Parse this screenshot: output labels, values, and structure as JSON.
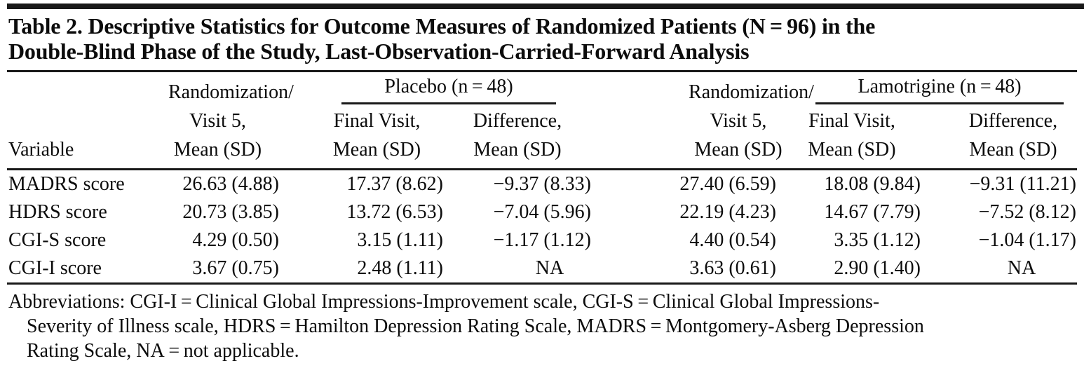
{
  "colors": {
    "background": "#ffffff",
    "text": "#0c0c0c",
    "rule": "#191919"
  },
  "table": {
    "title_lines": [
      "Table 2. Descriptive Statistics for Outcome Measures of Randomized Patients (N = 96) in the",
      "Double-Blind Phase of the Study, Last-Observation-Carried-Forward Analysis"
    ],
    "columns": {
      "variable": "Variable",
      "randomization_visit5": [
        "Randomization/",
        "Visit 5,",
        "Mean (SD)"
      ],
      "placebo": {
        "group": "Placebo (n = 48)",
        "final_visit": [
          "Final Visit,",
          "Mean (SD)"
        ],
        "difference": [
          "Difference,",
          "Mean (SD)"
        ]
      },
      "lamotrigine": {
        "group": "Lamotrigine (n = 48)",
        "final_visit": [
          "Final Visit,",
          "Mean (SD)"
        ],
        "difference": [
          "Difference,",
          "Mean (SD)"
        ]
      }
    },
    "rows": [
      {
        "variable": "MADRS score",
        "cells": [
          "26.63 (4.88)",
          "17.37 (8.62)",
          "−9.37 (8.33)",
          "27.40 (6.59)",
          "18.08 (9.84)",
          "−9.31 (11.21)"
        ]
      },
      {
        "variable": "HDRS score",
        "cells": [
          "20.73 (3.85)",
          "13.72 (6.53)",
          "−7.04 (5.96)",
          "22.19 (4.23)",
          "14.67 (7.79)",
          "−7.52 (8.12)"
        ]
      },
      {
        "variable": "CGI-S score",
        "cells": [
          "4.29 (0.50)",
          "3.15 (1.11)",
          "−1.17 (1.12)",
          "4.40 (0.54)",
          "3.35 (1.12)",
          "−1.04 (1.17)"
        ]
      },
      {
        "variable": "CGI-I score",
        "cells": [
          "3.67 (0.75)",
          "2.48 (1.11)",
          "NA",
          "3.63 (0.61)",
          "2.90 (1.40)",
          "NA"
        ]
      }
    ]
  },
  "footnote": {
    "lines": [
      "Abbreviations: CGI-I = Clinical Global Impressions-Improvement scale, CGI-S = Clinical Global Impressions-",
      "Severity of Illness scale, HDRS = Hamilton Depression Rating Scale, MADRS = Montgomery-Asberg Depression",
      "Rating Scale, NA = not applicable."
    ]
  }
}
